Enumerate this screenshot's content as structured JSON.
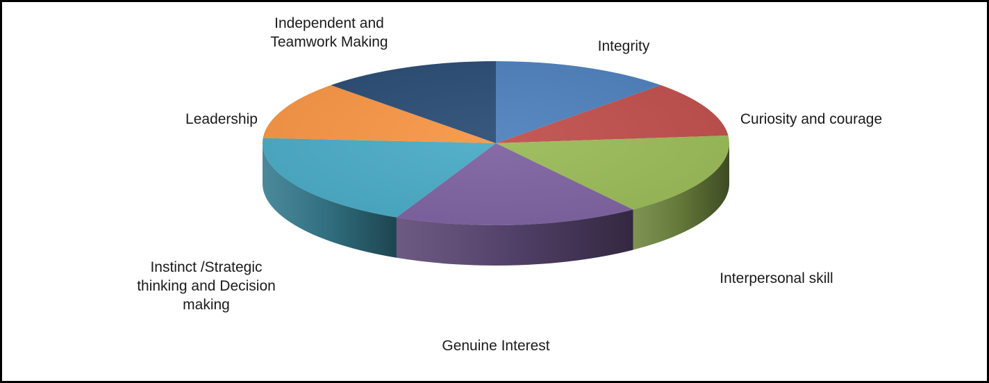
{
  "chart_data": {
    "type": "pie",
    "style": "3d",
    "legend": "none",
    "slices": [
      {
        "label": "Integrity",
        "value": 12.5,
        "color": "#4f81bd"
      },
      {
        "label": "Curiosity and courage",
        "value": 11,
        "color": "#c0504d"
      },
      {
        "label": "Interpersonal skill",
        "value": 16.5,
        "color": "#9bbb59"
      },
      {
        "label": "Genuine Interest",
        "value": 17,
        "color": "#8064a2"
      },
      {
        "label": "Instinct /Strategic thinking and Decision making",
        "value": 19,
        "color": "#4bacc6"
      },
      {
        "label": "Leadership",
        "value": 11.5,
        "color": "#f79646"
      },
      {
        "label": "Independent and Teamwork Making",
        "value": 12.5,
        "color": "#2c4d75"
      }
    ]
  }
}
